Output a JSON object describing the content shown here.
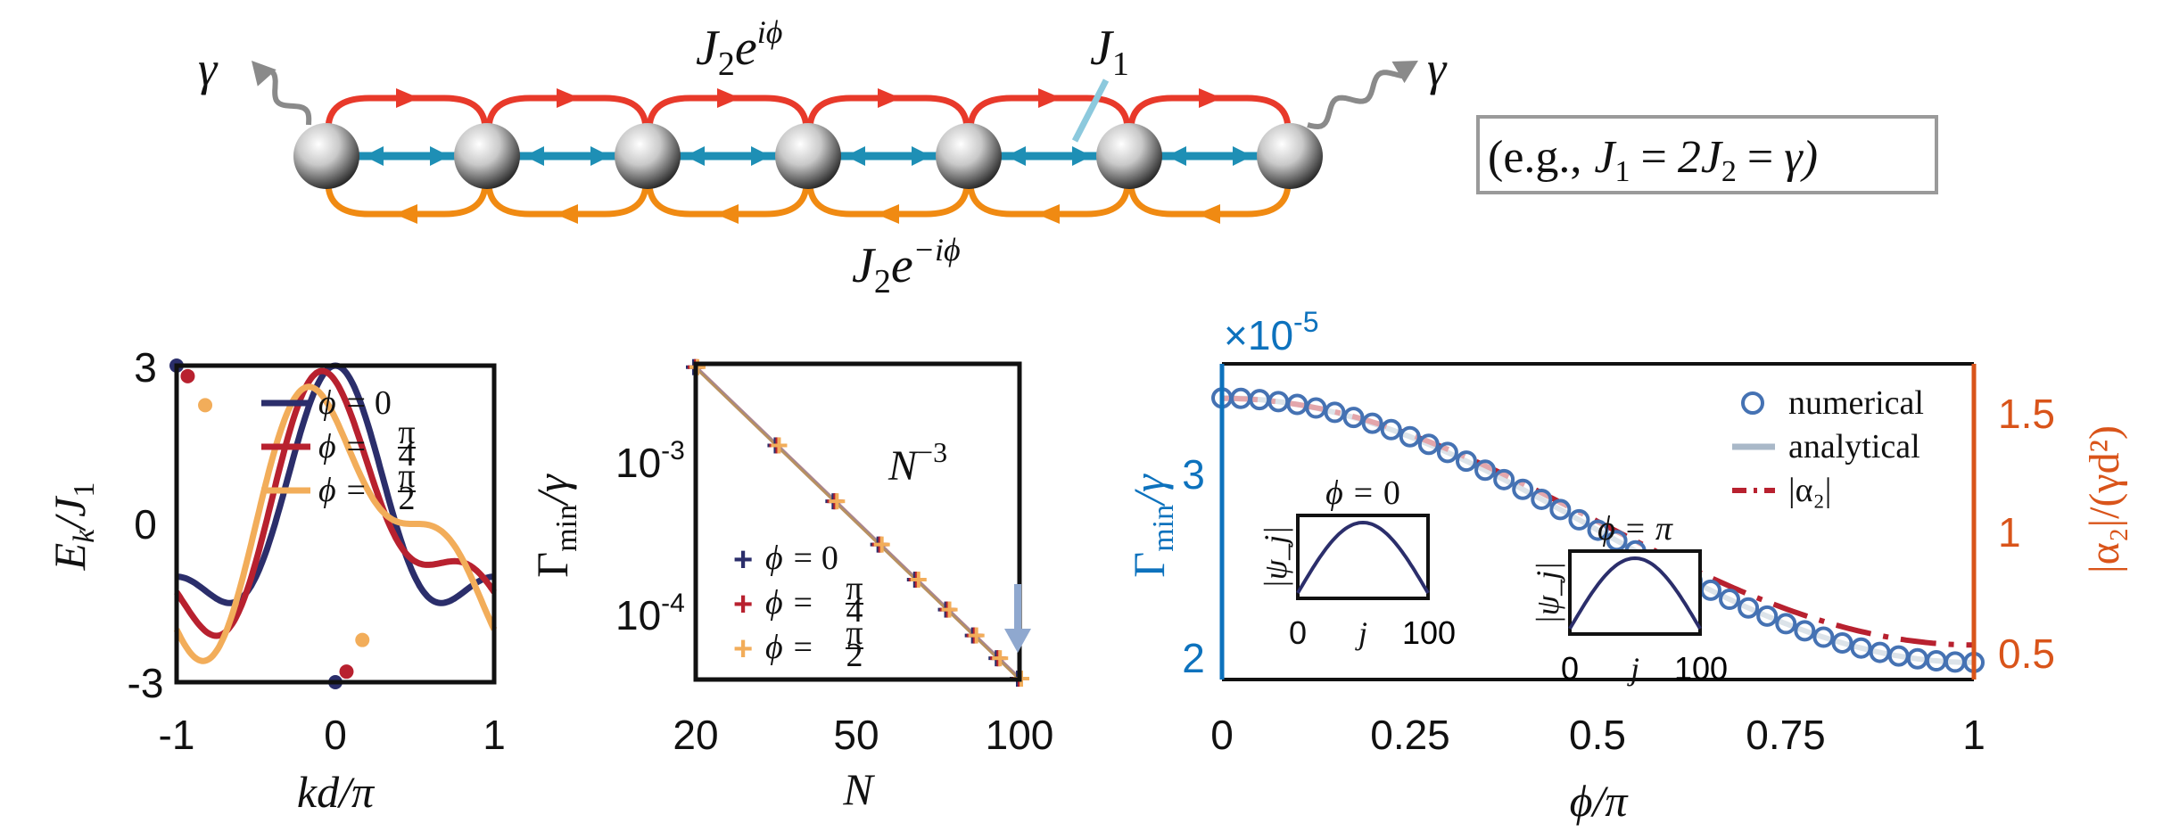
{
  "colors": {
    "red": "#e8392a",
    "orange": "#f08a12",
    "blue_bond": "#1e8fb5",
    "light_blue": "#8cc9dd",
    "navy": "#2b2e6b",
    "crimson": "#b8212f",
    "sand": "#f2ad5a",
    "axis_blue": "#0d72bd",
    "axis_orange": "#d9541a",
    "marker_blue": "#4572b3",
    "gray": "#8a8a8a",
    "analytic_gray": "#a9b8c8",
    "dashed_red": "#b8212f"
  },
  "schematic": {
    "hop_top": "J₂e^{iϕ}",
    "hop_top_base": "J",
    "hop_top_sub": "2",
    "hop_top_exp": "iϕ",
    "hop_bottom_base": "J",
    "hop_bottom_sub": "2",
    "hop_bottom_exp": "−iϕ",
    "nn_base": "J",
    "nn_sub": "1",
    "loss_left": "γ",
    "loss_right": "γ",
    "example_box": "(e.g., J₁ = 2J₂ = γ)",
    "example_prefix": "(e.g.,",
    "example_j1": "J",
    "example_j1_sub": "1",
    "example_eq1": "=",
    "example_j2": "2J",
    "example_j2_sub": "2",
    "example_eq2": "=",
    "example_gamma": "γ)",
    "atoms": 7,
    "icons": [
      "sphere-atom-icon",
      "wavy-emission-arrow-icon",
      "hopping-arrow-icon"
    ]
  },
  "chart_data": [
    {
      "type": "line",
      "title": "",
      "xlabel": "kd/π",
      "ylabel": "E_k/J_1",
      "xlabel_parts": {
        "main": "kd/π"
      },
      "ylabel_parts": {
        "E": "E",
        "k": "k",
        "rest": "/J",
        "sub": "1"
      },
      "xlim": [
        -1,
        1
      ],
      "ylim": [
        -3,
        3
      ],
      "xticks": [
        "-1",
        "0",
        "1"
      ],
      "yticks": [
        "3",
        "0",
        "-3"
      ],
      "series": [
        {
          "name": "ϕ = 0",
          "phi": 0,
          "color": "#2b2e6b"
        },
        {
          "name": "ϕ = π/4",
          "phi": 0.25,
          "color": "#b8212f"
        },
        {
          "name": "ϕ = π/2",
          "phi": 0.5,
          "color": "#f2ad5a"
        }
      ],
      "legend": {
        "placement": "top-right",
        "labels": [
          "ϕ = 0",
          "ϕ = π/4",
          "ϕ = π/2"
        ],
        "phi_sym": "ϕ =",
        "zero": "0",
        "pi": "π",
        "four": "4",
        "two": "2"
      },
      "markers": [
        {
          "series": 0,
          "x": -1,
          "y": 3
        },
        {
          "series": 0,
          "x": 0,
          "y": -3
        },
        {
          "series": 1,
          "x": -0.93,
          "y": 2.8
        },
        {
          "series": 1,
          "x": 0.07,
          "y": -2.8
        },
        {
          "series": 2,
          "x": -0.82,
          "y": 2.25
        },
        {
          "series": 2,
          "x": 0.17,
          "y": -2.2
        }
      ]
    },
    {
      "type": "scatter",
      "title": "",
      "xlabel": "N",
      "ylabel": "Γ_min/γ",
      "xscale": "log",
      "yscale": "log",
      "xlim": [
        20,
        100
      ],
      "ylim": [
        3e-05,
        0.004
      ],
      "xticks": [
        "20",
        "50",
        "100"
      ],
      "ytick_base": "10",
      "yticks": [
        {
          "base": "10",
          "exp": "-3",
          "value": 0.001
        },
        {
          "base": "10",
          "exp": "-4",
          "value": 0.0001
        }
      ],
      "annotation": {
        "base": "N",
        "exp": "−3"
      },
      "fit": {
        "type": "power_law",
        "exponent": -3,
        "ref_N": 20,
        "ref_value": 0.0038
      },
      "x": [
        20,
        30,
        40,
        50,
        60,
        70,
        80,
        90,
        100
      ],
      "series": [
        {
          "name": "ϕ = 0",
          "color": "#2b2e6b",
          "values": [
            0.0038,
            0.00113,
            0.000475,
            0.000243,
            0.000141,
            8.87e-05,
            5.94e-05,
            4.17e-05,
            3.04e-05
          ]
        },
        {
          "name": "ϕ = π/4",
          "color": "#b8212f",
          "values": [
            0.0038,
            0.00113,
            0.000475,
            0.000243,
            0.000141,
            8.87e-05,
            5.94e-05,
            4.17e-05,
            3.04e-05
          ]
        },
        {
          "name": "ϕ = π/2",
          "color": "#f2ad5a",
          "values": [
            0.0038,
            0.00113,
            0.000475,
            0.000243,
            0.000141,
            8.87e-05,
            5.94e-05,
            4.17e-05,
            3.04e-05
          ]
        }
      ],
      "legend": {
        "placement": "bottom-left",
        "marker": "+",
        "labels": [
          "ϕ = 0",
          "ϕ = π/4",
          "ϕ = π/2"
        ]
      },
      "highlight_arrow": {
        "x": 100,
        "color": "#8fa8cf"
      }
    },
    {
      "type": "scatter",
      "title": "",
      "xlabel": "ϕ/π",
      "ylabel_left": "Γ_min/γ",
      "ylabel_right": "|α₂|/(γd²)",
      "exponent_label": {
        "base": "×10",
        "exp": "-5"
      },
      "xlim": [
        0,
        1
      ],
      "ylim_left": [
        1.8,
        3.65
      ],
      "ylim_right": [
        0.35,
        1.72
      ],
      "xticks": [
        "0",
        "0.25",
        "0.5",
        "0.75",
        "1"
      ],
      "yticks_left": [
        "3",
        "2"
      ],
      "yticks_right": [
        "1.5",
        "1",
        "0.5"
      ],
      "left_scale": 1e-05,
      "series": [
        {
          "name": "numerical",
          "axis": "left",
          "marker": "o",
          "color": "#4572b3",
          "formula": "1.9 + 1.55*cos(pi*phi/2)^2"
        },
        {
          "name": "analytical",
          "axis": "left",
          "style": "solid",
          "color": "#a9b8c8"
        },
        {
          "name": "|α₂|",
          "axis": "right",
          "style": "dashdot",
          "color": "#b8212f",
          "formula": "0.5 + 1.07*cos(pi*phi/2)^2"
        }
      ],
      "numerical_phi": [
        0,
        0.025,
        0.05,
        0.075,
        0.1,
        0.125,
        0.15,
        0.175,
        0.2,
        0.225,
        0.25,
        0.275,
        0.3,
        0.325,
        0.35,
        0.375,
        0.4,
        0.425,
        0.45,
        0.475,
        0.5,
        0.525,
        0.55,
        0.575,
        0.6,
        0.625,
        0.65,
        0.675,
        0.7,
        0.725,
        0.75,
        0.775,
        0.8,
        0.825,
        0.85,
        0.875,
        0.9,
        0.925,
        0.95,
        0.975,
        1
      ],
      "legend": {
        "placement": "top-right",
        "numerical": "numerical",
        "analytical": "analytical",
        "alpha": "|α₂|"
      },
      "insets": [
        {
          "title_sym": "ϕ =",
          "title_val": "0",
          "ylabel": "|ψ_j|",
          "xticks": [
            "0",
            "j",
            "100"
          ],
          "profile": "sine",
          "color": "#2b2e6b"
        },
        {
          "title_sym": "ϕ =",
          "title_val": "π",
          "ylabel": "|ψ_j|",
          "xticks": [
            "0",
            "j",
            "100"
          ],
          "profile": "sine",
          "color": "#2b2e6b"
        }
      ]
    }
  ]
}
